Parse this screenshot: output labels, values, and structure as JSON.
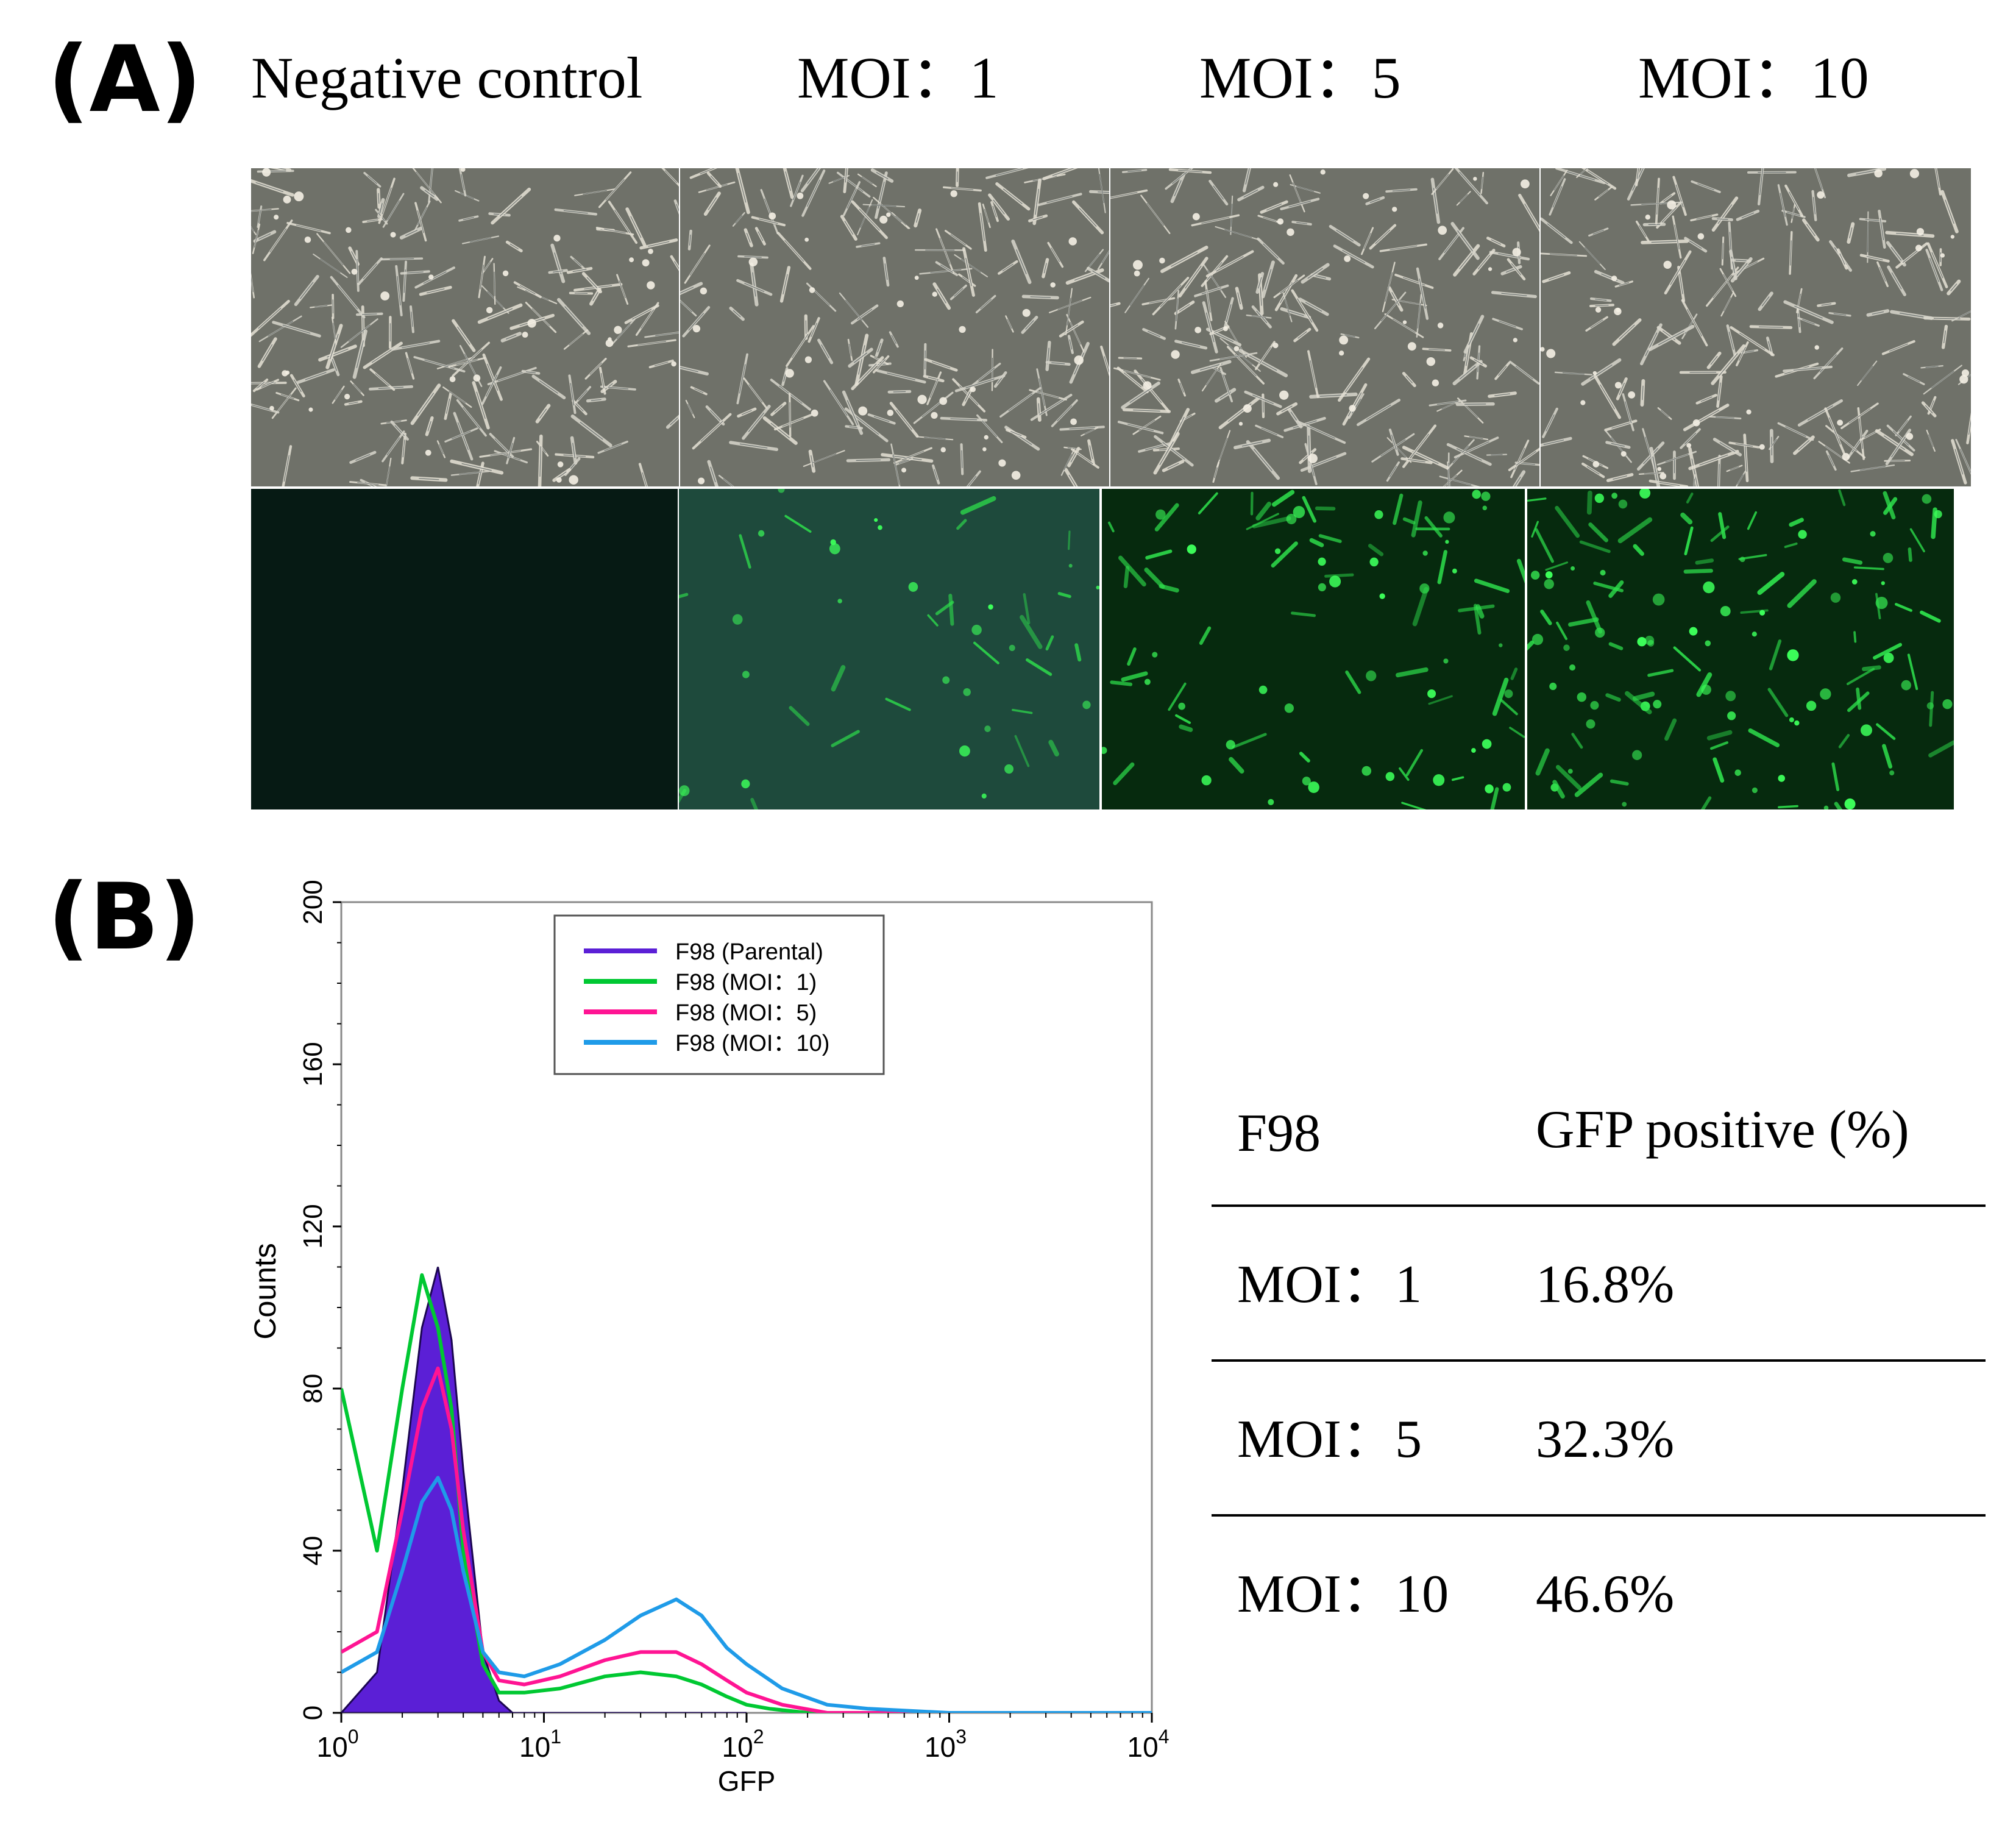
{
  "panel_a": {
    "label": "(A)",
    "columns": [
      {
        "title": "Negative control"
      },
      {
        "title": "MOI：1"
      },
      {
        "title": "MOI：5"
      },
      {
        "title": "MOI：10"
      }
    ],
    "rows": [
      {
        "kind": "phase-contrast",
        "tone": "#6f7169"
      },
      {
        "kind": "fluorescence",
        "fluorescence_levels": [
          0.0,
          0.35,
          0.7,
          1.0
        ]
      }
    ]
  },
  "panel_b": {
    "label": "(B)",
    "table": {
      "headers": [
        "F98",
        "GFP positive (%)"
      ],
      "rows": [
        [
          "MOI：1",
          "16.8%"
        ],
        [
          "MOI：5",
          "32.3%"
        ],
        [
          "MOI：10",
          "46.6%"
        ]
      ]
    }
  },
  "chart_data": {
    "type": "histogram",
    "title": "",
    "xlabel": "GFP",
    "ylabel": "Counts",
    "xscale": "log",
    "xlim": [
      1,
      10000
    ],
    "ylim": [
      0,
      200
    ],
    "yticks": [
      0,
      40,
      80,
      120,
      160,
      200
    ],
    "xticks": [
      {
        "base": "10",
        "exp": "0"
      },
      {
        "base": "10",
        "exp": "1"
      },
      {
        "base": "10",
        "exp": "2"
      },
      {
        "base": "10",
        "exp": "3"
      },
      {
        "base": "10",
        "exp": "4"
      }
    ],
    "legend_position": "top-right",
    "series": [
      {
        "name": "F98 (Parental)",
        "color": "#5b1fd6",
        "filled": true,
        "x": [
          1,
          1.5,
          2,
          2.5,
          3,
          3.5,
          4,
          5,
          6,
          7,
          10,
          100
        ],
        "y": [
          0,
          10,
          55,
          95,
          110,
          92,
          60,
          15,
          3,
          0,
          0,
          0
        ]
      },
      {
        "name": "F98 (MOI：1)",
        "color": "#00c832",
        "filled": false,
        "x": [
          1,
          1.5,
          2,
          2.5,
          3,
          3.5,
          4,
          5,
          6,
          8,
          12,
          20,
          30,
          45,
          60,
          80,
          100,
          130,
          200,
          10000
        ],
        "y": [
          80,
          40,
          80,
          108,
          95,
          75,
          40,
          12,
          5,
          5,
          6,
          9,
          10,
          9,
          7,
          4,
          2,
          1,
          0,
          0
        ]
      },
      {
        "name": "F98 (MOI：5)",
        "color": "#ff1493",
        "filled": false,
        "x": [
          1,
          1.5,
          2,
          2.5,
          3,
          3.5,
          4,
          5,
          6,
          8,
          12,
          20,
          30,
          45,
          60,
          80,
          100,
          150,
          250,
          10000
        ],
        "y": [
          15,
          20,
          50,
          75,
          85,
          70,
          45,
          15,
          8,
          7,
          9,
          13,
          15,
          15,
          12,
          8,
          5,
          2,
          0,
          0
        ]
      },
      {
        "name": "F98 (MOI：10)",
        "color": "#1f9be8",
        "filled": false,
        "x": [
          1,
          1.5,
          2,
          2.5,
          3,
          3.5,
          4,
          5,
          6,
          8,
          12,
          20,
          30,
          45,
          60,
          80,
          100,
          150,
          250,
          400,
          1000,
          10000
        ],
        "y": [
          10,
          15,
          35,
          52,
          58,
          50,
          35,
          15,
          10,
          9,
          12,
          18,
          24,
          28,
          24,
          16,
          12,
          6,
          2,
          1,
          0,
          0
        ]
      }
    ]
  }
}
